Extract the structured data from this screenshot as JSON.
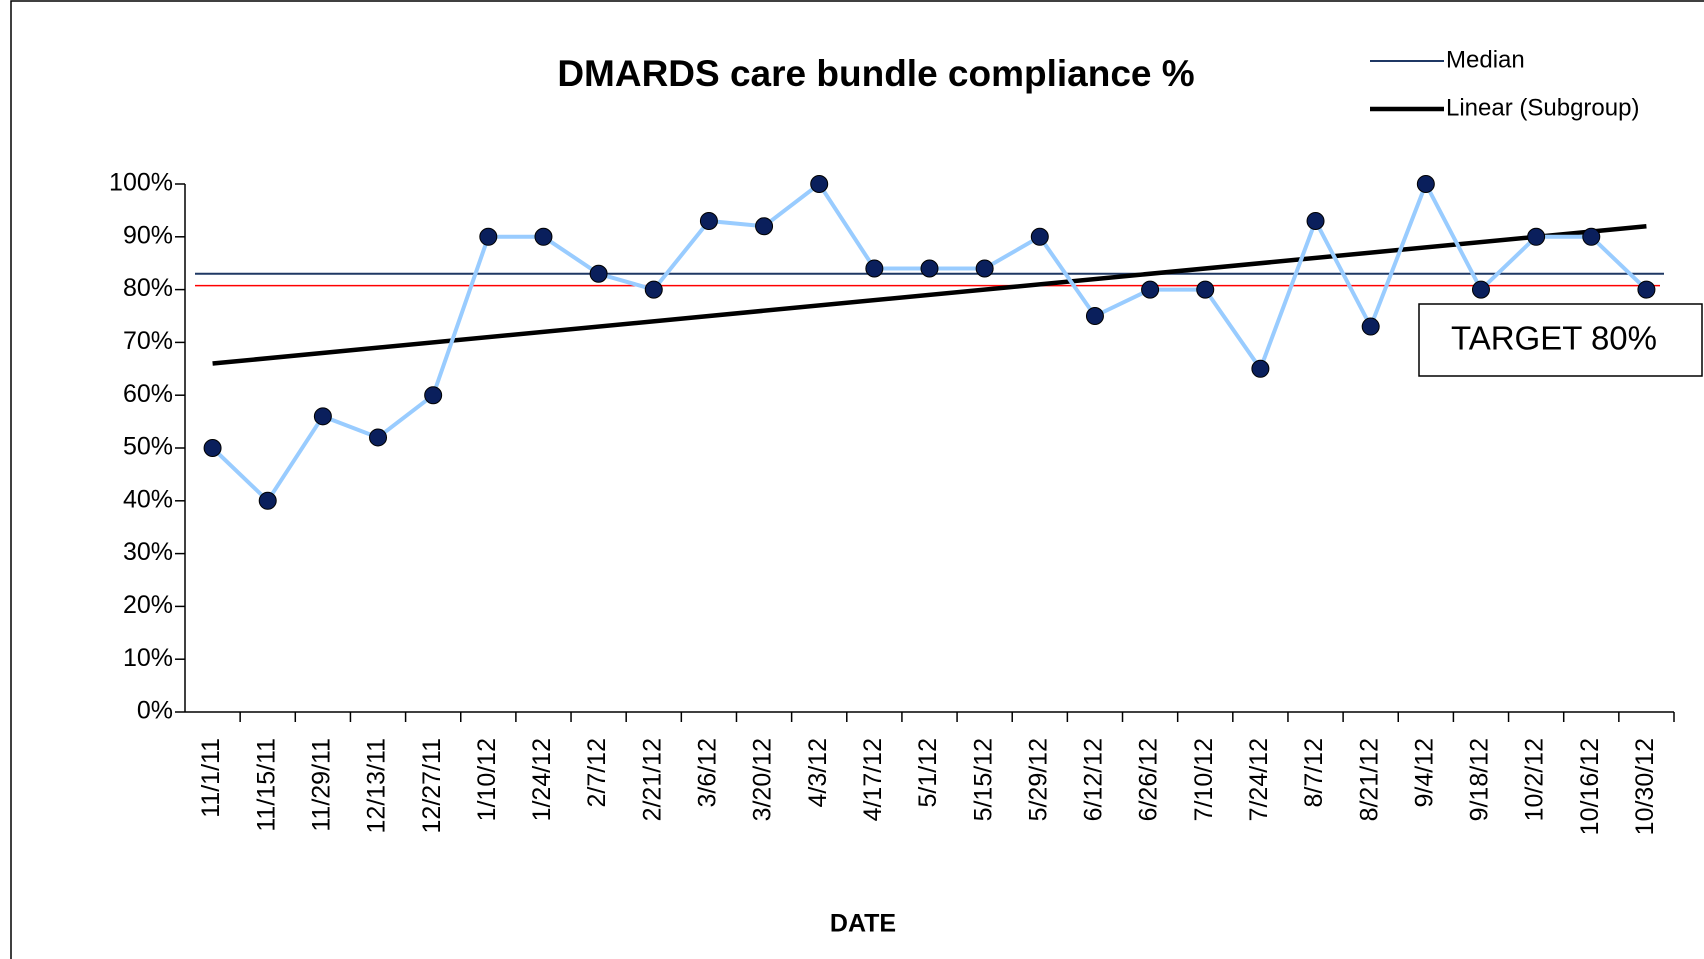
{
  "chart_data": {
    "type": "line",
    "title": "DMARDS care bundle compliance %",
    "x_label": "DATE",
    "categories": [
      "11/1/11",
      "11/15/11",
      "11/29/11",
      "12/13/11",
      "12/27/11",
      "1/10/12",
      "1/24/12",
      "2/7/12",
      "2/21/12",
      "3/6/12",
      "3/20/12",
      "4/3/12",
      "4/17/12",
      "5/1/12",
      "5/15/12",
      "5/29/12",
      "6/12/12",
      "6/26/12",
      "7/10/12",
      "7/24/12",
      "8/7/12",
      "8/21/12",
      "9/4/12",
      "9/18/12",
      "10/2/12",
      "10/16/12",
      "10/30/12"
    ],
    "series": [
      {
        "color": "#99ccff",
        "marker_color": "#0a1f5c",
        "values": [
          50,
          40,
          56,
          52,
          60,
          90,
          90,
          83,
          80,
          93,
          92,
          100,
          84,
          84,
          84,
          90,
          75,
          80,
          80,
          65,
          93,
          73,
          100,
          80,
          90,
          90,
          80
        ]
      }
    ],
    "median": {
      "name": "Median",
      "value": 83,
      "color": "#1f3864"
    },
    "trend": {
      "name": "Linear (Subgroup)",
      "values": [
        66,
        92
      ],
      "color": "#000000"
    },
    "target": {
      "label": "TARGET 80%",
      "value": 80,
      "color": "#ff0000",
      "text_color": "#ff3300"
    },
    "ylim": [
      0,
      100
    ],
    "yticks": [
      {
        "value": 0,
        "label": "0%"
      },
      {
        "value": 10,
        "label": "10%"
      },
      {
        "value": 20,
        "label": "20%"
      },
      {
        "value": 30,
        "label": "30%"
      },
      {
        "value": 40,
        "label": "40%"
      },
      {
        "value": 50,
        "label": "50%"
      },
      {
        "value": 60,
        "label": "60%"
      },
      {
        "value": 70,
        "label": "70%"
      },
      {
        "value": 80,
        "label": "80%"
      },
      {
        "value": 90,
        "label": "90%"
      },
      {
        "value": 100,
        "label": "100%"
      }
    ],
    "grid": false
  }
}
